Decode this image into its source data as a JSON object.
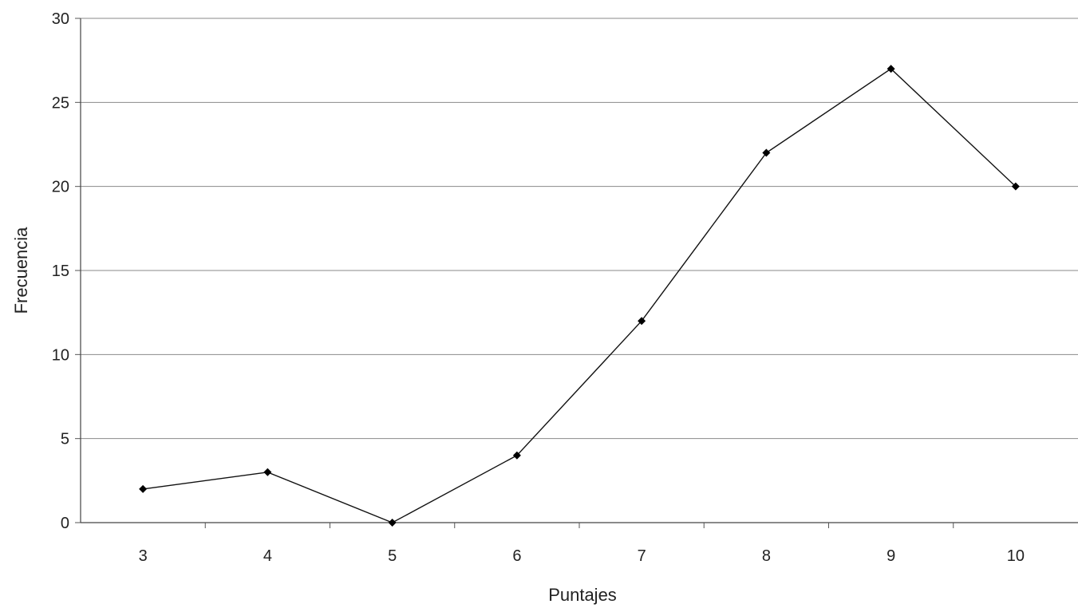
{
  "chart_data": {
    "type": "line",
    "title": "",
    "xlabel": "Puntajes",
    "ylabel": "Frecuencia",
    "categories": [
      "3",
      "4",
      "5",
      "6",
      "7",
      "8",
      "9",
      "10"
    ],
    "series": [
      {
        "values": [
          2,
          3,
          0,
          4,
          12,
          22,
          27,
          20
        ]
      }
    ],
    "ylim": [
      0,
      30
    ],
    "yticks": [
      "0",
      "5",
      "10",
      "15",
      "20",
      "25",
      "30"
    ],
    "grid": "horizontal",
    "marker": "diamond",
    "line_color": "#111111",
    "marker_color": "#000000"
  }
}
